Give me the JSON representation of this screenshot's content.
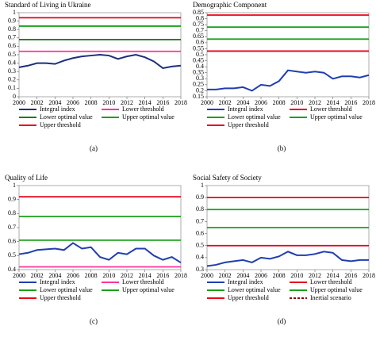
{
  "chart_data": [
    {
      "type": "line",
      "title": "Standard of Living in Ukraine",
      "caption": "(a)",
      "x": [
        2000,
        2001,
        2002,
        2003,
        2004,
        2005,
        2006,
        2007,
        2008,
        2009,
        2010,
        2011,
        2012,
        2013,
        2014,
        2015,
        2016,
        2017,
        2018
      ],
      "xlim": [
        2000,
        2018
      ],
      "xticks": [
        2000,
        2002,
        2004,
        2006,
        2008,
        2010,
        2012,
        2014,
        2016,
        2018
      ],
      "ylim": [
        0,
        1
      ],
      "yticks": [
        0,
        0.1,
        0.2,
        0.3,
        0.4,
        0.5,
        0.6,
        0.7,
        0.8,
        0.9,
        1
      ],
      "series": [
        {
          "name": "Integral index",
          "color": "#1c2f80",
          "values": [
            0.35,
            0.37,
            0.4,
            0.4,
            0.39,
            0.43,
            0.46,
            0.48,
            0.49,
            0.5,
            0.49,
            0.45,
            0.48,
            0.5,
            0.47,
            0.42,
            0.34,
            0.36,
            0.37
          ]
        },
        {
          "name": "Lower threshold",
          "color": "#ff3399",
          "values": [
            0.54,
            0.54,
            0.54,
            0.54,
            0.54,
            0.54,
            0.54,
            0.54,
            0.54,
            0.54,
            0.54,
            0.54,
            0.54,
            0.54,
            0.54,
            0.54,
            0.54,
            0.54,
            0.54
          ]
        },
        {
          "name": "Lower optimal value",
          "color": "#1f7a1f",
          "values": [
            0.68,
            0.68,
            0.68,
            0.68,
            0.68,
            0.68,
            0.68,
            0.68,
            0.68,
            0.68,
            0.68,
            0.68,
            0.68,
            0.68,
            0.68,
            0.68,
            0.68,
            0.68,
            0.68
          ]
        },
        {
          "name": "Upper optimal value",
          "color": "#1aa01a",
          "values": [
            0.84,
            0.84,
            0.84,
            0.84,
            0.84,
            0.84,
            0.84,
            0.84,
            0.84,
            0.84,
            0.84,
            0.84,
            0.84,
            0.84,
            0.84,
            0.84,
            0.84,
            0.84,
            0.84
          ]
        },
        {
          "name": "Upper threshold",
          "color": "#e8001c",
          "values": [
            0.94,
            0.94,
            0.94,
            0.94,
            0.94,
            0.94,
            0.94,
            0.94,
            0.94,
            0.94,
            0.94,
            0.94,
            0.94,
            0.94,
            0.94,
            0.94,
            0.94,
            0.94,
            0.94
          ]
        }
      ]
    },
    {
      "type": "line",
      "title": "Demographic Component",
      "caption": "(b)",
      "x": [
        2000,
        2001,
        2002,
        2003,
        2004,
        2005,
        2006,
        2007,
        2008,
        2009,
        2010,
        2011,
        2012,
        2013,
        2014,
        2015,
        2016,
        2017,
        2018
      ],
      "xlim": [
        2000,
        2018
      ],
      "xticks": [
        2000,
        2002,
        2004,
        2006,
        2008,
        2010,
        2012,
        2014,
        2016,
        2018
      ],
      "ylim": [
        0.15,
        0.85
      ],
      "yticks": [
        0.15,
        0.2,
        0.25,
        0.3,
        0.35,
        0.4,
        0.45,
        0.5,
        0.55,
        0.6,
        0.65,
        0.7,
        0.75,
        0.8,
        0.85
      ],
      "series": [
        {
          "name": "Integral index",
          "color": "#1f3fb0",
          "values": [
            0.21,
            0.21,
            0.22,
            0.22,
            0.23,
            0.2,
            0.25,
            0.24,
            0.28,
            0.37,
            0.36,
            0.35,
            0.36,
            0.35,
            0.3,
            0.32,
            0.32,
            0.31,
            0.33
          ]
        },
        {
          "name": "Lower threshold",
          "color": "#e8001c",
          "values": [
            0.53,
            0.53,
            0.53,
            0.53,
            0.53,
            0.53,
            0.53,
            0.53,
            0.53,
            0.53,
            0.53,
            0.53,
            0.53,
            0.53,
            0.53,
            0.53,
            0.53,
            0.53,
            0.53
          ]
        },
        {
          "name": "Lower optimal value",
          "color": "#1aa01a",
          "values": [
            0.63,
            0.63,
            0.63,
            0.63,
            0.63,
            0.63,
            0.63,
            0.63,
            0.63,
            0.63,
            0.63,
            0.63,
            0.63,
            0.63,
            0.63,
            0.63,
            0.63,
            0.63,
            0.63
          ]
        },
        {
          "name": "Upper optimal value",
          "color": "#1aa01a",
          "values": [
            0.73,
            0.73,
            0.73,
            0.73,
            0.73,
            0.73,
            0.73,
            0.73,
            0.73,
            0.73,
            0.73,
            0.73,
            0.73,
            0.73,
            0.73,
            0.73,
            0.73,
            0.73,
            0.73
          ]
        },
        {
          "name": "Upper threshold",
          "color": "#e8001c",
          "values": [
            0.83,
            0.83,
            0.83,
            0.83,
            0.83,
            0.83,
            0.83,
            0.83,
            0.83,
            0.83,
            0.83,
            0.83,
            0.83,
            0.83,
            0.83,
            0.83,
            0.83,
            0.83,
            0.83
          ]
        }
      ]
    },
    {
      "type": "line",
      "title": "Quality of Life",
      "caption": "(c)",
      "x": [
        2000,
        2001,
        2002,
        2003,
        2004,
        2005,
        2006,
        2007,
        2008,
        2009,
        2010,
        2011,
        2012,
        2013,
        2014,
        2015,
        2016,
        2017,
        2018
      ],
      "xlim": [
        2000,
        2018
      ],
      "xticks": [
        2000,
        2002,
        2004,
        2006,
        2008,
        2010,
        2012,
        2014,
        2016,
        2018
      ],
      "ylim": [
        0.4,
        1
      ],
      "yticks": [
        0.4,
        0.5,
        0.6,
        0.7,
        0.8,
        0.9,
        1
      ],
      "series": [
        {
          "name": "Integral index",
          "color": "#1f3fb0",
          "values": [
            0.51,
            0.52,
            0.54,
            0.545,
            0.55,
            0.54,
            0.59,
            0.55,
            0.56,
            0.49,
            0.47,
            0.52,
            0.51,
            0.55,
            0.55,
            0.5,
            0.47,
            0.49,
            0.45
          ]
        },
        {
          "name": "Lower threshold",
          "color": "#ff3399",
          "values": [
            0.42,
            0.42,
            0.42,
            0.42,
            0.42,
            0.42,
            0.42,
            0.42,
            0.42,
            0.42,
            0.42,
            0.42,
            0.42,
            0.42,
            0.42,
            0.42,
            0.42,
            0.42,
            0.42
          ]
        },
        {
          "name": "Lower optimal value",
          "color": "#1aa01a",
          "values": [
            0.61,
            0.61,
            0.61,
            0.61,
            0.61,
            0.61,
            0.61,
            0.61,
            0.61,
            0.61,
            0.61,
            0.61,
            0.61,
            0.61,
            0.61,
            0.61,
            0.61,
            0.61,
            0.61
          ]
        },
        {
          "name": "Upper optimal value",
          "color": "#1aa01a",
          "values": [
            0.78,
            0.78,
            0.78,
            0.78,
            0.78,
            0.78,
            0.78,
            0.78,
            0.78,
            0.78,
            0.78,
            0.78,
            0.78,
            0.78,
            0.78,
            0.78,
            0.78,
            0.78,
            0.78
          ]
        },
        {
          "name": "Upper threshold",
          "color": "#e8001c",
          "values": [
            0.92,
            0.92,
            0.92,
            0.92,
            0.92,
            0.92,
            0.92,
            0.92,
            0.92,
            0.92,
            0.92,
            0.92,
            0.92,
            0.92,
            0.92,
            0.92,
            0.92,
            0.92,
            0.92
          ]
        }
      ]
    },
    {
      "type": "line",
      "title": "Social Safety of Society",
      "caption": "(d)",
      "x": [
        2000,
        2001,
        2002,
        2003,
        2004,
        2005,
        2006,
        2007,
        2008,
        2009,
        2010,
        2011,
        2012,
        2013,
        2014,
        2015,
        2016,
        2017,
        2018
      ],
      "xlim": [
        2000,
        2018
      ],
      "xticks": [
        2000,
        2002,
        2004,
        2006,
        2008,
        2010,
        2012,
        2014,
        2016,
        2018
      ],
      "ylim": [
        0.3,
        1
      ],
      "yticks": [
        0.3,
        0.4,
        0.5,
        0.6,
        0.7,
        0.8,
        0.9,
        1
      ],
      "series": [
        {
          "name": "Integral index",
          "color": "#1f3fb0",
          "values": [
            0.33,
            0.34,
            0.36,
            0.37,
            0.38,
            0.36,
            0.4,
            0.39,
            0.41,
            0.45,
            0.42,
            0.42,
            0.43,
            0.45,
            0.44,
            0.38,
            0.37,
            0.38,
            0.38
          ]
        },
        {
          "name": "Lower threshold",
          "color": "#e8001c",
          "values": [
            0.5,
            0.5,
            0.5,
            0.5,
            0.5,
            0.5,
            0.5,
            0.5,
            0.5,
            0.5,
            0.5,
            0.5,
            0.5,
            0.5,
            0.5,
            0.5,
            0.5,
            0.5,
            0.5
          ]
        },
        {
          "name": "Lower optimal value",
          "color": "#1aa01a",
          "values": [
            0.65,
            0.65,
            0.65,
            0.65,
            0.65,
            0.65,
            0.65,
            0.65,
            0.65,
            0.65,
            0.65,
            0.65,
            0.65,
            0.65,
            0.65,
            0.65,
            0.65,
            0.65,
            0.65
          ]
        },
        {
          "name": "Upper optimal value",
          "color": "#1aa01a",
          "values": [
            0.8,
            0.8,
            0.8,
            0.8,
            0.8,
            0.8,
            0.8,
            0.8,
            0.8,
            0.8,
            0.8,
            0.8,
            0.8,
            0.8,
            0.8,
            0.8,
            0.8,
            0.8,
            0.8
          ]
        },
        {
          "name": "Upper threshold",
          "color": "#e8001c",
          "values": [
            0.9,
            0.9,
            0.9,
            0.9,
            0.9,
            0.9,
            0.9,
            0.9,
            0.9,
            0.9,
            0.9,
            0.9,
            0.9,
            0.9,
            0.9,
            0.9,
            0.9,
            0.9,
            0.9
          ]
        },
        {
          "name": "Inertial scenario",
          "color": "#8b0000",
          "dashed": true,
          "values": [
            null,
            null,
            null,
            null,
            null,
            null,
            null,
            null,
            null,
            null,
            null,
            null,
            null,
            null,
            null,
            null,
            null,
            null,
            null
          ]
        }
      ]
    }
  ]
}
